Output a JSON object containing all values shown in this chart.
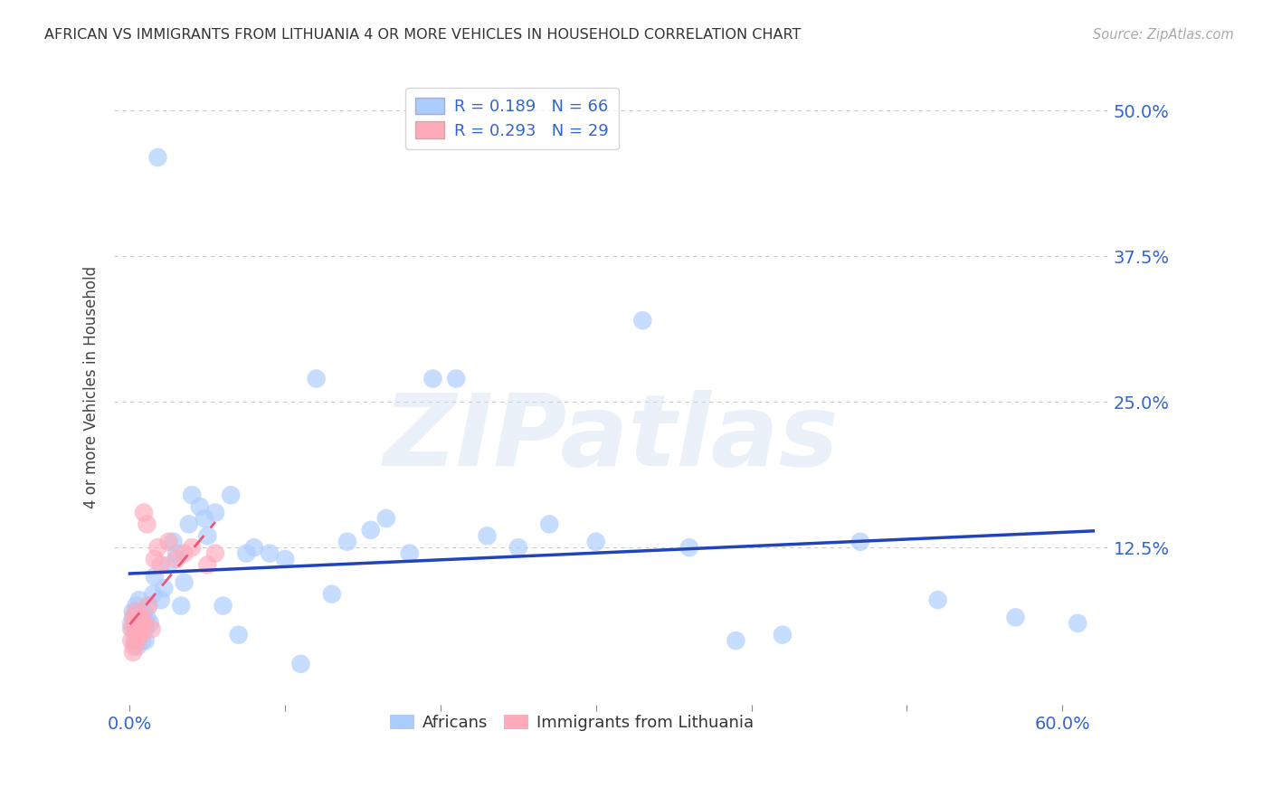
{
  "title": "AFRICAN VS IMMIGRANTS FROM LITHUANIA 4 OR MORE VEHICLES IN HOUSEHOLD CORRELATION CHART",
  "source": "Source: ZipAtlas.com",
  "xlabel_ticks": [
    "0.0%",
    "60.0%"
  ],
  "xlabel_tick_vals": [
    0.0,
    0.6
  ],
  "xlabel_minor_ticks": [
    0.1,
    0.2,
    0.3,
    0.4,
    0.5
  ],
  "ylabel": "4 or more Vehicles in Household",
  "ylabel_ticks": [
    "50.0%",
    "37.5%",
    "25.0%",
    "12.5%"
  ],
  "ylabel_tick_vals": [
    0.5,
    0.375,
    0.25,
    0.125
  ],
  "xlim": [
    -0.01,
    0.63
  ],
  "ylim": [
    -0.01,
    0.535
  ],
  "R_african": 0.189,
  "N_african": 66,
  "R_lithuania": 0.293,
  "N_lithuania": 29,
  "color_african": "#aaccff",
  "color_lithuania": "#ffaabb",
  "color_line_african": "#2244bb",
  "color_line_lithuania": "#ee5577",
  "legend_label_african": "Africans",
  "legend_label_lithuania": "Immigrants from Lithuania",
  "african_x": [
    0.001,
    0.002,
    0.002,
    0.003,
    0.003,
    0.004,
    0.004,
    0.005,
    0.005,
    0.006,
    0.006,
    0.007,
    0.007,
    0.008,
    0.008,
    0.009,
    0.009,
    0.01,
    0.01,
    0.011,
    0.012,
    0.013,
    0.015,
    0.016,
    0.018,
    0.02,
    0.022,
    0.025,
    0.028,
    0.03,
    0.033,
    0.035,
    0.038,
    0.04,
    0.045,
    0.048,
    0.05,
    0.055,
    0.06,
    0.065,
    0.07,
    0.075,
    0.08,
    0.09,
    0.1,
    0.11,
    0.12,
    0.13,
    0.14,
    0.155,
    0.165,
    0.18,
    0.195,
    0.21,
    0.23,
    0.25,
    0.27,
    0.3,
    0.33,
    0.36,
    0.39,
    0.42,
    0.47,
    0.52,
    0.57,
    0.61
  ],
  "african_y": [
    0.06,
    0.055,
    0.07,
    0.045,
    0.065,
    0.05,
    0.075,
    0.055,
    0.04,
    0.06,
    0.08,
    0.05,
    0.065,
    0.055,
    0.045,
    0.07,
    0.06,
    0.055,
    0.045,
    0.065,
    0.075,
    0.06,
    0.085,
    0.1,
    0.46,
    0.08,
    0.09,
    0.11,
    0.13,
    0.12,
    0.075,
    0.095,
    0.145,
    0.17,
    0.16,
    0.15,
    0.135,
    0.155,
    0.075,
    0.17,
    0.05,
    0.12,
    0.125,
    0.12,
    0.115,
    0.025,
    0.27,
    0.085,
    0.13,
    0.14,
    0.15,
    0.12,
    0.27,
    0.27,
    0.135,
    0.125,
    0.145,
    0.13,
    0.32,
    0.125,
    0.045,
    0.05,
    0.13,
    0.08,
    0.065,
    0.06
  ],
  "lithuania_x": [
    0.001,
    0.001,
    0.002,
    0.002,
    0.003,
    0.003,
    0.004,
    0.004,
    0.005,
    0.005,
    0.006,
    0.006,
    0.007,
    0.007,
    0.008,
    0.009,
    0.01,
    0.011,
    0.012,
    0.014,
    0.016,
    0.018,
    0.02,
    0.025,
    0.03,
    0.035,
    0.04,
    0.05,
    0.055
  ],
  "lithuania_y": [
    0.055,
    0.045,
    0.065,
    0.035,
    0.06,
    0.04,
    0.07,
    0.055,
    0.05,
    0.045,
    0.06,
    0.055,
    0.065,
    0.05,
    0.055,
    0.155,
    0.06,
    0.145,
    0.075,
    0.055,
    0.115,
    0.125,
    0.11,
    0.13,
    0.115,
    0.12,
    0.125,
    0.11,
    0.12
  ],
  "watermark": "ZIPatlas",
  "background_color": "#ffffff",
  "grid_color": "#cccccc",
  "grid_linestyle": "--"
}
